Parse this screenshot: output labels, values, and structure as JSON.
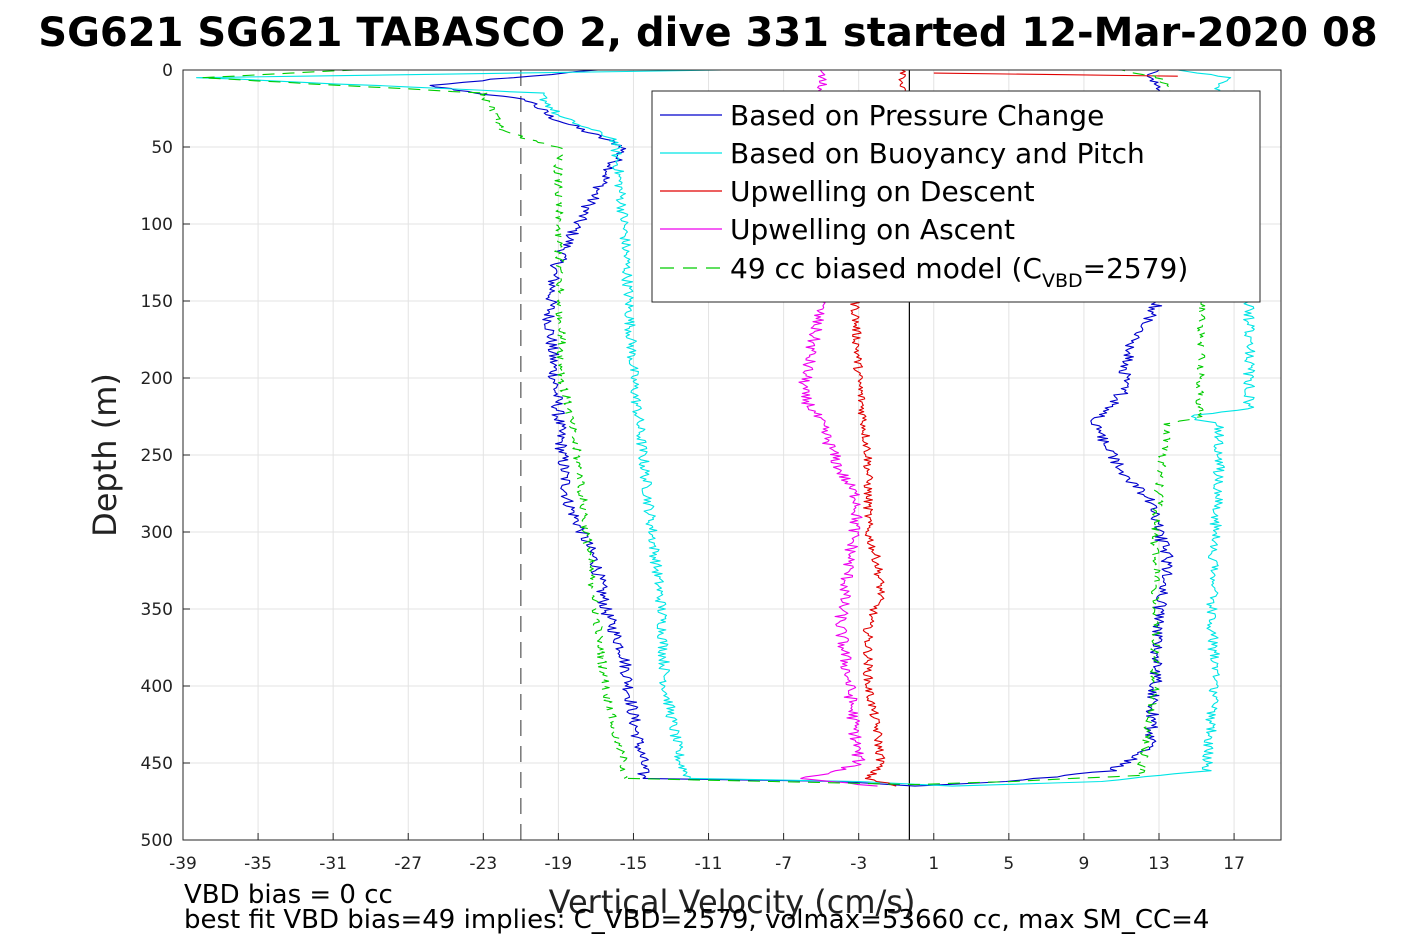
{
  "chart_data": {
    "type": "line",
    "title": "SG621 SG621 TABASCO 2, dive 331 started 12-Mar-2020 08",
    "xlabel": "Vertical Velocity (cm/s)",
    "ylabel": "Depth (m)",
    "xlim": [
      -39,
      19.5
    ],
    "ylim": [
      0,
      500
    ],
    "y_reversed": true,
    "grid": true,
    "x_ticks": [
      -39,
      -35,
      -31,
      -27,
      -23,
      -19,
      -15,
      -11,
      -7,
      -3,
      1,
      5,
      9,
      13,
      17
    ],
    "y_ticks": [
      0,
      50,
      100,
      150,
      200,
      250,
      300,
      350,
      400,
      450,
      500
    ],
    "legend_position": "top-right",
    "reference_lines": [
      {
        "x": -21.0,
        "style": "dashed",
        "color": "#555555"
      },
      {
        "x": -0.3,
        "style": "solid",
        "color": "#000000"
      }
    ],
    "series": [
      {
        "name": "Based on Pressure Change",
        "color": "#0000cc",
        "style": "solid",
        "noise": 0.35,
        "segments": [
          {
            "x": [
              -17,
              -26,
              -20.5,
              -19.5,
              -16.5,
              -15.5,
              -16.5,
              -18,
              -19.2,
              -19.5,
              -19.2,
              -18.8,
              -18.5,
              -17,
              -16.5,
              -15.5,
              -15,
              -14.5,
              -14.5
            ],
            "y": [
              0,
              10,
              20,
              30,
              45,
              50,
              70,
              100,
              130,
              160,
              200,
              250,
              280,
              320,
              350,
              380,
              420,
              450,
              460
            ]
          },
          {
            "x": [
              -14.5,
              -4,
              0,
              5,
              10.5,
              12.5,
              12.8,
              13,
              13.5,
              13,
              12.5,
              11,
              9.5,
              11,
              11.5,
              13,
              13.7,
              13.2,
              12.6,
              13.4,
              12.5,
              13
            ],
            "y": [
              460,
              462,
              465,
              462,
              455,
              440,
              400,
              350,
              320,
              300,
              280,
              260,
              230,
              210,
              180,
              150,
              120,
              80,
              40,
              15,
              5,
              0
            ]
          }
        ]
      },
      {
        "name": "Based on Buoyancy and Pitch",
        "color": "#00e5e5",
        "style": "solid",
        "noise": 0.3,
        "segments": [
          {
            "x": [
              -10,
              -38,
              -20,
              -19,
              -16,
              -15.5,
              -15,
              -14,
              -13.5,
              -13.3,
              -12.5,
              -12
            ],
            "y": [
              0,
              5,
              15,
              30,
              45,
              100,
              200,
              300,
              350,
              400,
              450,
              460
            ]
          },
          {
            "x": [
              -12,
              -3,
              2,
              10,
              15.5,
              16,
              15.8,
              16,
              16.2,
              16.2,
              14.5,
              17.8,
              17.8,
              17.5,
              17.5,
              16,
              17,
              14
            ],
            "y": [
              460,
              462,
              465,
              462,
              455,
              400,
              350,
              300,
              260,
              230,
              225,
              220,
              160,
              100,
              40,
              10,
              5,
              0
            ]
          }
        ]
      },
      {
        "name": "Upwelling on Descent",
        "color": "#e00000",
        "style": "solid",
        "noise": 0.25,
        "segments": [
          {
            "x": [
              -0.5,
              -3.2,
              -3.0,
              -2.5,
              -2.5,
              -2.0,
              -1.8,
              -2.5,
              -2.5,
              -2.0,
              -1.8,
              -2.5,
              -1.0
            ],
            "y": [
              0,
              150,
              200,
              250,
              300,
              320,
              340,
              360,
              400,
              430,
              450,
              460,
              465
            ]
          },
          {
            "x": [
              1,
              14
            ],
            "y": [
              2,
              4
            ]
          }
        ]
      },
      {
        "name": "Upwelling on Ascent",
        "color": "#ee00ee",
        "style": "solid",
        "noise": 0.35,
        "segments": [
          {
            "x": [
              -5.0,
              -5.0,
              -5.5,
              -6.0,
              -5.0,
              -4.0,
              -3.0,
              -3.5,
              -4.0,
              -3.5,
              -3.2,
              -3.0,
              -4.0,
              -6.0,
              -2.0
            ],
            "y": [
              0,
              150,
              180,
              210,
              230,
              260,
              280,
              320,
              360,
              400,
              430,
              450,
              455,
              460,
              465
            ]
          }
        ]
      },
      {
        "name": "49 cc biased model (C_VBD=2579)",
        "color": "#00cc00",
        "style": "dashed",
        "noise": 0.25,
        "segments": [
          {
            "x": [
              -30,
              -38,
              -23,
              -22,
              -19,
              -19,
              -18.8,
              -18.0,
              -17.5,
              -17.0,
              -16.5,
              -16.0,
              -15.5,
              -15.5
            ],
            "y": [
              0,
              5,
              15,
              40,
              50,
              100,
              200,
              250,
              300,
              350,
              400,
              430,
              450,
              460
            ]
          },
          {
            "x": [
              -15.5,
              0,
              5,
              12,
              12.8,
              12.8,
              13.2,
              13.5,
              15.2,
              15.2,
              14.8,
              13.0,
              11.0
            ],
            "y": [
              460,
              464,
              462,
              458,
              400,
              300,
              250,
              230,
              225,
              150,
              30,
              5,
              0
            ]
          }
        ]
      }
    ]
  },
  "legend": {
    "items": [
      {
        "label": "Based on Pressure Change",
        "color": "#0000cc",
        "dash": ""
      },
      {
        "label": "Based on Buoyancy and Pitch",
        "color": "#00e5e5",
        "dash": ""
      },
      {
        "label": "Upwelling on Descent",
        "color": "#e00000",
        "dash": ""
      },
      {
        "label": "Upwelling on Ascent",
        "color": "#ee00ee",
        "dash": ""
      },
      {
        "label_pre": "49 cc biased model (C",
        "label_sub": "VBD",
        "label_post": "=2579)",
        "color": "#00cc00",
        "dash": "14,9"
      }
    ]
  },
  "notes": {
    "line1": "VBD bias = 0 cc",
    "line2": "best fit VBD bias=49 implies: C_VBD=2579, volmax=53660 cc, max SM_CC=4"
  }
}
